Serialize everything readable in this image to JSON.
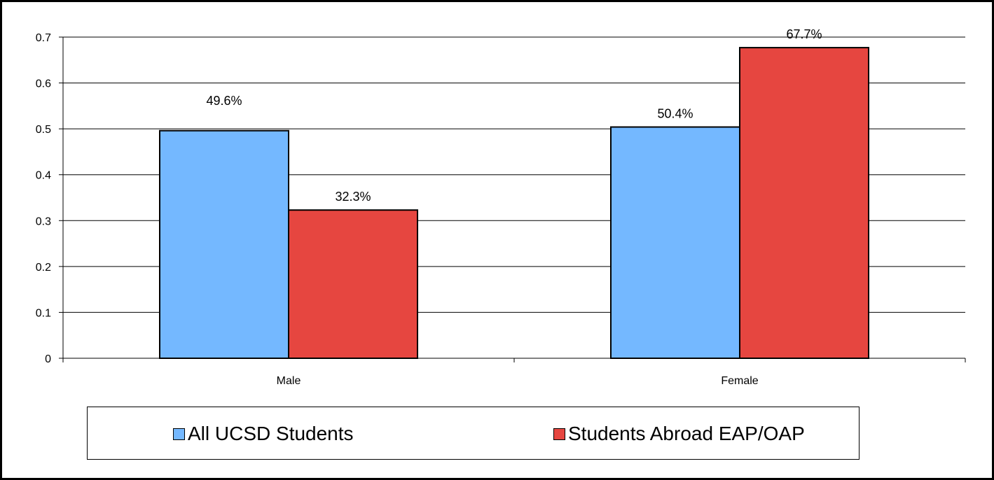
{
  "chart_data": {
    "type": "bar",
    "categories": [
      "Male",
      "Female"
    ],
    "series": [
      {
        "name": "All UCSD Students",
        "values": [
          0.496,
          0.504
        ],
        "labels": [
          "49.6%",
          "50.4%"
        ],
        "color": "#74b8ff"
      },
      {
        "name": "Students Abroad EAP/OAP",
        "values": [
          0.323,
          0.677
        ],
        "labels": [
          "32.3%",
          "67.7%"
        ],
        "color": "#e64640"
      }
    ],
    "ylim": [
      0,
      0.7
    ],
    "yticks": [
      "0",
      "0.1",
      "0.2",
      "0.3",
      "0.4",
      "0.5",
      "0.6",
      "0.7"
    ],
    "grid": true,
    "legend_position": "bottom"
  }
}
